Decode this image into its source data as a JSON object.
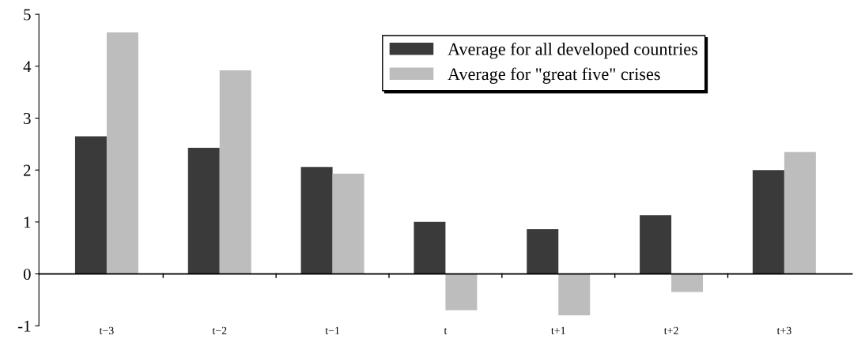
{
  "chart_data": {
    "type": "bar",
    "categories": [
      "t−3",
      "t−2",
      "t−1",
      "t",
      "t+1",
      "t+2",
      "t+3"
    ],
    "series": [
      {
        "name": "Average for all developed countries",
        "color": "#3a3a3a",
        "values": [
          2.65,
          2.43,
          2.06,
          1.0,
          0.86,
          1.13,
          2.0
        ]
      },
      {
        "name": "Average for \"great five\" crises",
        "color": "#bdbdbd",
        "values": [
          4.65,
          3.92,
          1.93,
          -0.7,
          -0.8,
          -0.35,
          2.35
        ]
      }
    ],
    "ylim": [
      -1,
      5
    ],
    "yticks": [
      -1,
      0,
      1,
      2,
      3,
      4,
      5
    ],
    "legend": "top right"
  }
}
